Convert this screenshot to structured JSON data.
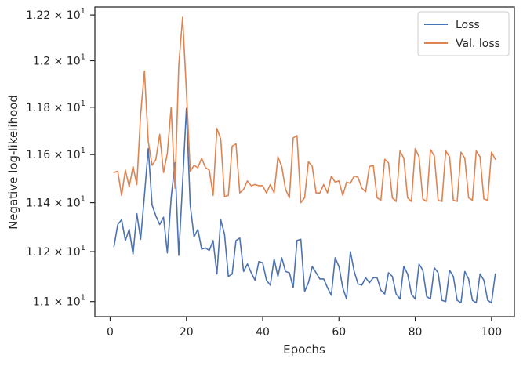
{
  "chart_data": {
    "type": "line",
    "title": "",
    "xlabel": "Epochs",
    "ylabel": "Negative log-likelihood",
    "xlim": [
      -4,
      106
    ],
    "ylim": [
      10.94,
      12.235
    ],
    "x_ticks": [
      0,
      20,
      40,
      60,
      80,
      100
    ],
    "x_tick_labels": [
      "0",
      "20",
      "40",
      "60",
      "80",
      "100"
    ],
    "y_scale": "log",
    "y_ticks": [
      11.0,
      11.2,
      11.4,
      11.6,
      11.8,
      12.0,
      12.2
    ],
    "y_tick_mantissas": [
      "1.1",
      "1.12",
      "1.14",
      "1.16",
      "1.18",
      "1.2",
      "1.22"
    ],
    "y_tick_base": "10",
    "y_tick_exponent": "1",
    "y_tick_multiplier": "×",
    "grid": false,
    "legend_position": "top-right",
    "colors": {
      "loss": "#4c72b0",
      "val_loss": "#dd8452",
      "axes": "#262626"
    },
    "series": [
      {
        "name": "Loss",
        "color": "#4c72b0",
        "x": [
          1,
          2,
          3,
          4,
          5,
          6,
          7,
          8,
          9,
          10,
          11,
          12,
          13,
          14,
          15,
          16,
          17,
          18,
          19,
          20,
          21,
          22,
          23,
          24,
          25,
          26,
          27,
          28,
          29,
          30,
          31,
          32,
          33,
          34,
          35,
          36,
          37,
          38,
          39,
          40,
          41,
          42,
          43,
          44,
          45,
          46,
          47,
          48,
          49,
          50,
          51,
          52,
          53,
          54,
          55,
          56,
          57,
          58,
          59,
          60,
          61,
          62,
          63,
          64,
          65,
          66,
          67,
          68,
          69,
          70,
          71,
          72,
          73,
          74,
          75,
          76,
          77,
          78,
          79,
          80,
          81,
          82,
          83,
          84,
          85,
          86,
          87,
          88,
          89,
          90,
          91,
          92,
          93,
          94,
          95,
          96,
          97,
          98,
          99,
          100,
          101
        ],
        "values": [
          11.22,
          11.31,
          11.33,
          11.245,
          11.29,
          11.19,
          11.355,
          11.25,
          11.43,
          11.625,
          11.39,
          11.345,
          11.31,
          11.34,
          11.195,
          11.42,
          11.565,
          11.185,
          11.48,
          11.795,
          11.39,
          11.26,
          11.29,
          11.21,
          11.215,
          11.205,
          11.245,
          11.11,
          11.33,
          11.27,
          11.1,
          11.11,
          11.245,
          11.255,
          11.12,
          11.15,
          11.115,
          11.085,
          11.16,
          11.155,
          11.085,
          11.065,
          11.17,
          11.1,
          11.175,
          11.12,
          11.115,
          11.055,
          11.245,
          11.25,
          11.04,
          11.075,
          11.14,
          11.115,
          11.09,
          11.09,
          11.055,
          11.025,
          11.175,
          11.14,
          11.055,
          11.01,
          11.2,
          11.12,
          11.07,
          11.065,
          11.095,
          11.075,
          11.095,
          11.095,
          11.045,
          11.03,
          11.115,
          11.1,
          11.03,
          11.01,
          11.14,
          11.11,
          11.03,
          11.01,
          11.15,
          11.125,
          11.02,
          11.01,
          11.135,
          11.115,
          11.005,
          11.0,
          11.125,
          11.1,
          11.005,
          10.995,
          11.12,
          11.09,
          11.005,
          10.995,
          11.11,
          11.085,
          11.005,
          10.995,
          11.11
        ]
      },
      {
        "name": "Val. loss",
        "color": "#dd8452",
        "x": [
          1,
          2,
          3,
          4,
          5,
          6,
          7,
          8,
          9,
          10,
          11,
          12,
          13,
          14,
          15,
          16,
          17,
          18,
          19,
          20,
          21,
          22,
          23,
          24,
          25,
          26,
          27,
          28,
          29,
          30,
          31,
          32,
          33,
          34,
          35,
          36,
          37,
          38,
          39,
          40,
          41,
          42,
          43,
          44,
          45,
          46,
          47,
          48,
          49,
          50,
          51,
          52,
          53,
          54,
          55,
          56,
          57,
          58,
          59,
          60,
          61,
          62,
          63,
          64,
          65,
          66,
          67,
          68,
          69,
          70,
          71,
          72,
          73,
          74,
          75,
          76,
          77,
          78,
          79,
          80,
          81,
          82,
          83,
          84,
          85,
          86,
          87,
          88,
          89,
          90,
          91,
          92,
          93,
          94,
          95,
          96,
          97,
          98,
          99,
          100,
          101
        ],
        "values": [
          11.525,
          11.53,
          11.43,
          11.535,
          11.465,
          11.55,
          11.475,
          11.77,
          11.955,
          11.655,
          11.555,
          11.58,
          11.685,
          11.525,
          11.605,
          11.8,
          11.46,
          11.98,
          12.19,
          11.87,
          11.53,
          11.555,
          11.545,
          11.585,
          11.545,
          11.535,
          11.43,
          11.71,
          11.665,
          11.425,
          11.43,
          11.635,
          11.645,
          11.44,
          11.455,
          11.49,
          11.47,
          11.475,
          11.47,
          11.47,
          11.44,
          11.475,
          11.44,
          11.59,
          11.55,
          11.455,
          11.42,
          11.67,
          11.68,
          11.4,
          11.42,
          11.57,
          11.55,
          11.44,
          11.44,
          11.475,
          11.44,
          11.51,
          11.485,
          11.49,
          11.43,
          11.485,
          11.48,
          11.51,
          11.505,
          11.46,
          11.445,
          11.55,
          11.555,
          11.42,
          11.41,
          11.58,
          11.565,
          11.42,
          11.405,
          11.615,
          11.585,
          11.42,
          11.405,
          11.625,
          11.59,
          11.415,
          11.405,
          11.62,
          11.595,
          11.41,
          11.405,
          11.615,
          11.59,
          11.41,
          11.405,
          11.61,
          11.585,
          11.42,
          11.41,
          11.615,
          11.59,
          11.415,
          11.41,
          11.61,
          11.58
        ]
      }
    ]
  }
}
